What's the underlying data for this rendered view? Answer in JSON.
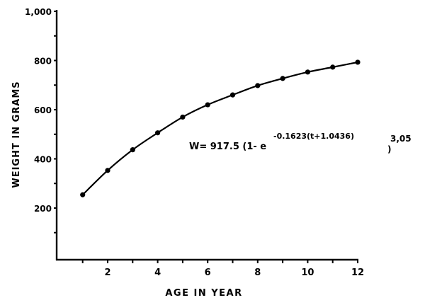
{
  "chart_data": {
    "type": "line",
    "title": "",
    "xlabel": "AGE IN YEAR",
    "ylabel": "WEIGHT IN GRAMS",
    "xlim": [
      0,
      12
    ],
    "ylim": [
      0,
      1000
    ],
    "x_ticks": [
      1,
      2,
      3,
      4,
      5,
      6,
      7,
      8,
      9,
      10,
      11,
      12
    ],
    "x_tick_labels": [
      "2",
      "4",
      "6",
      "8",
      "10",
      "12"
    ],
    "x_tick_label_values": [
      2,
      4,
      6,
      8,
      10,
      12
    ],
    "y_tick_labels": [
      "200",
      "400",
      "600",
      "800",
      "1,000"
    ],
    "y_tick_label_values": [
      200,
      400,
      600,
      800,
      1000
    ],
    "y_minor_ticks": [
      100,
      300,
      500,
      700,
      900
    ],
    "grid": false,
    "legend": "none",
    "series": [
      {
        "x": [
          1,
          2,
          3,
          4,
          5,
          6,
          7,
          8,
          9,
          10,
          11,
          12
        ],
        "values": [
          254,
          353,
          437,
          506,
          570,
          620,
          660,
          698,
          727,
          753,
          773,
          793
        ],
        "marker": "filled-circle",
        "color": "#000000"
      }
    ],
    "annotation": {
      "prefix": "W= 917.5 (1- e",
      "exponent": "-0.1623(t+1.0436)",
      "close": ")",
      "power": "3,05"
    }
  }
}
